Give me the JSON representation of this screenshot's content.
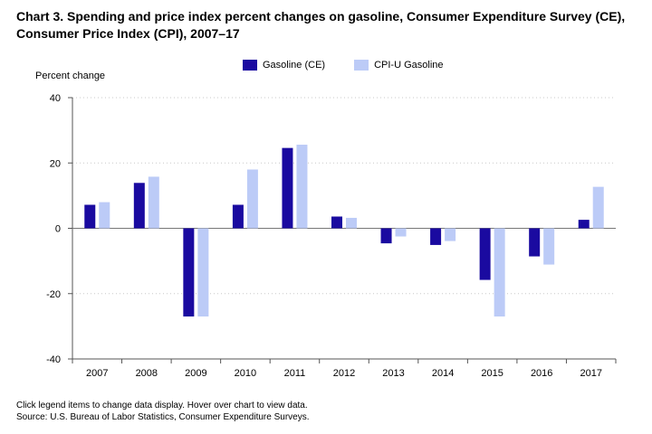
{
  "title": "Chart 3. Spending and price index percent changes on gasoline, Consumer Expenditure Survey (CE), Consumer Price Index (CPI), 2007–17",
  "legend": [
    {
      "label": "Gasoline (CE)",
      "color": "#1a0aa0"
    },
    {
      "label": "CPI-U Gasoline",
      "color": "#bccbf7"
    }
  ],
  "footnote": {
    "line1": "Click legend items to change data display. Hover over chart to view data.",
    "line2": "Source: U.S. Bureau of Labor Statistics, Consumer Expenditure Surveys."
  },
  "chart_data": {
    "type": "bar",
    "title": "Chart 3. Spending and price index percent changes on gasoline, Consumer Expenditure Survey (CE), Consumer Price Index (CPI), 2007–17",
    "ylabel": "Percent change",
    "xlabel": "",
    "ylim": [
      -40,
      40
    ],
    "yticks": [
      -40,
      -20,
      0,
      20,
      40
    ],
    "grid": true,
    "legend_position": "top",
    "categories": [
      "2007",
      "2008",
      "2009",
      "2010",
      "2011",
      "2012",
      "2013",
      "2014",
      "2015",
      "2016",
      "2017"
    ],
    "series": [
      {
        "name": "Gasoline (CE)",
        "color": "#1a0aa0",
        "values": [
          7.2,
          13.9,
          -27.0,
          7.2,
          24.6,
          3.6,
          -4.6,
          -5.1,
          -15.8,
          -8.6,
          2.6
        ]
      },
      {
        "name": "CPI-U Gasoline",
        "color": "#bccbf7",
        "values": [
          8.0,
          15.8,
          -27.0,
          18.0,
          25.6,
          3.2,
          -2.5,
          -3.9,
          -27.0,
          -11.1,
          12.7
        ]
      }
    ]
  }
}
